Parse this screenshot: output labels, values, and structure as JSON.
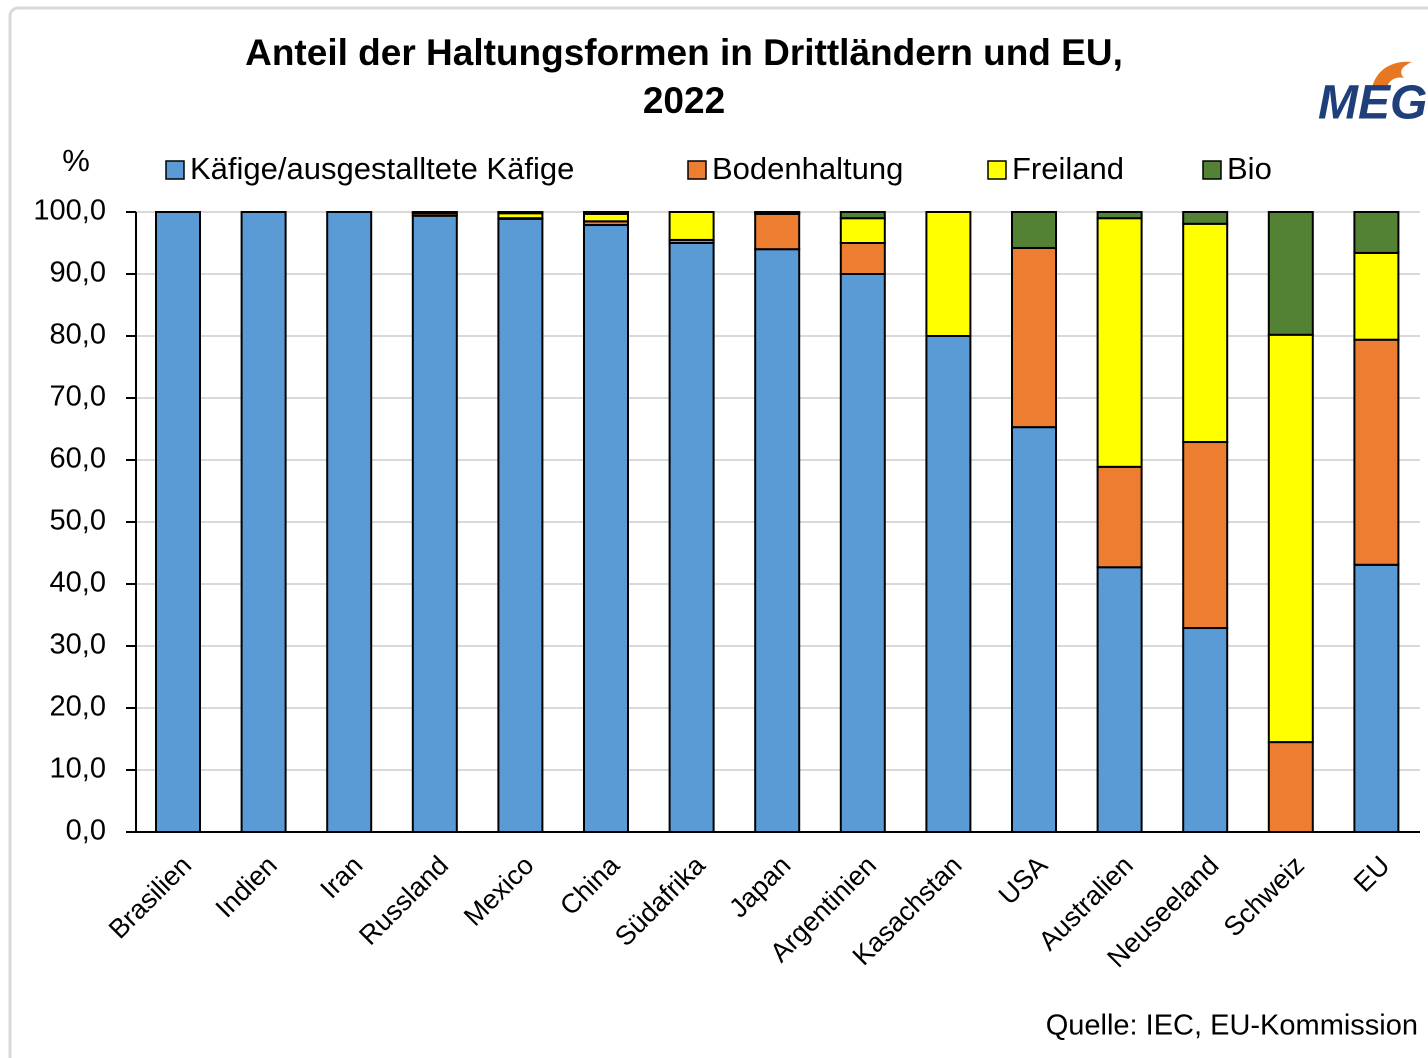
{
  "chart_data": {
    "type": "stacked_bar",
    "title_lines": [
      "Anteil der Haltungsformen in Drittländern und EU,",
      "2022"
    ],
    "y_axis_label": "%",
    "source": "Quelle: IEC, EU-Kommission",
    "logo": "MEG",
    "categories": [
      "Brasilien",
      "Indien",
      "Iran",
      "Russland",
      "Mexico",
      "China",
      "Südafrika",
      "Japan",
      "Argentinien",
      "Kasachstan",
      "USA",
      "Australien",
      "Neuseeland",
      "Schweiz",
      "EU"
    ],
    "series": [
      {
        "name": "Käfige/ausgestalltete Käfige",
        "color": "#5b9bd5",
        "values": [
          100,
          100,
          100,
          99.4,
          98.9,
          97.9,
          95,
          94,
          90,
          80,
          65.3,
          42.7,
          32.9,
          0,
          43.1
        ]
      },
      {
        "name": "Bodenhaltung",
        "color": "#ed7d31",
        "values": [
          0,
          0,
          0,
          0.4,
          0.1,
          0.6,
          0.5,
          5.7,
          5,
          0,
          28.9,
          16.2,
          30,
          14.5,
          36.3
        ]
      },
      {
        "name": "Freiland",
        "color": "#ffff00",
        "values": [
          0,
          0,
          0,
          0,
          0.8,
          1.2,
          4.5,
          0.1,
          4,
          20,
          0,
          40.1,
          35.2,
          65.7,
          14
        ]
      },
      {
        "name": "Bio",
        "color": "#548235",
        "values": [
          0,
          0,
          0,
          0.2,
          0.2,
          0.3,
          0,
          0.2,
          1,
          0,
          5.8,
          1,
          1.9,
          19.8,
          6.6
        ]
      }
    ],
    "ylim": [
      0,
      100
    ],
    "yticks": [
      {
        "value": 0,
        "label": "0,0"
      },
      {
        "value": 10,
        "label": "10,0"
      },
      {
        "value": 20,
        "label": "20,0"
      },
      {
        "value": 30,
        "label": "30,0"
      },
      {
        "value": 40,
        "label": "40,0"
      },
      {
        "value": 50,
        "label": "50,0"
      },
      {
        "value": 60,
        "label": "60,0"
      },
      {
        "value": 70,
        "label": "70,0"
      },
      {
        "value": 80,
        "label": "80,0"
      },
      {
        "value": 90,
        "label": "90,0"
      },
      {
        "value": 100,
        "label": "100,0"
      }
    ],
    "grid": true,
    "legend": "top"
  }
}
